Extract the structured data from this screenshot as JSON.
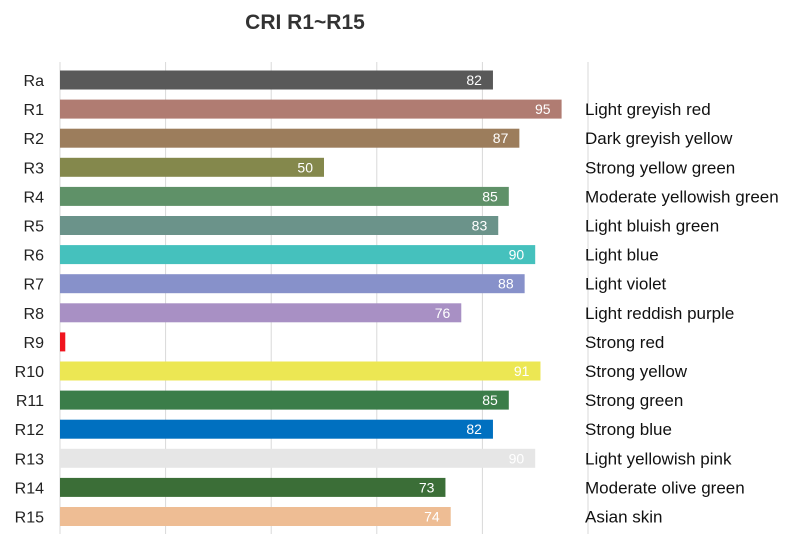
{
  "chart_data": {
    "type": "bar",
    "orientation": "horizontal",
    "title": "CRI R1~R15",
    "xlabel": "",
    "ylabel": "",
    "xlim": [
      0,
      100
    ],
    "grid": true,
    "legend": "none",
    "categories": [
      "Ra",
      "R1",
      "R2",
      "R3",
      "R4",
      "R5",
      "R6",
      "R7",
      "R8",
      "R9",
      "R10",
      "R11",
      "R12",
      "R13",
      "R14",
      "R15"
    ],
    "values": [
      82,
      95,
      87,
      50,
      85,
      83,
      90,
      88,
      76,
      1,
      91,
      85,
      82,
      90,
      73,
      74
    ],
    "value_labels": [
      "82",
      "95",
      "87",
      "50",
      "85",
      "83",
      "90",
      "88",
      "76",
      "",
      "91",
      "85",
      "82",
      "90",
      "73",
      "74"
    ],
    "descriptions": [
      "",
      "Light greyish red",
      "Dark greyish yellow",
      "Strong yellow green",
      "Moderate yellowish green",
      "Light bluish green",
      "Light blue",
      "Light violet",
      "Light reddish purple",
      "Strong red",
      "Strong yellow",
      "Strong green",
      "Strong blue",
      "Light yellowish pink",
      "Moderate olive green",
      "Asian skin"
    ],
    "colors": [
      "#595959",
      "#b07c72",
      "#9c7d5c",
      "#84884c",
      "#5f9168",
      "#6b938a",
      "#45c1bd",
      "#8791ca",
      "#a890c4",
      "#f0141e",
      "#ece753",
      "#3b7d49",
      "#0070c0",
      "#e6e6e6",
      "#3b6e37",
      "#eebd94"
    ]
  }
}
